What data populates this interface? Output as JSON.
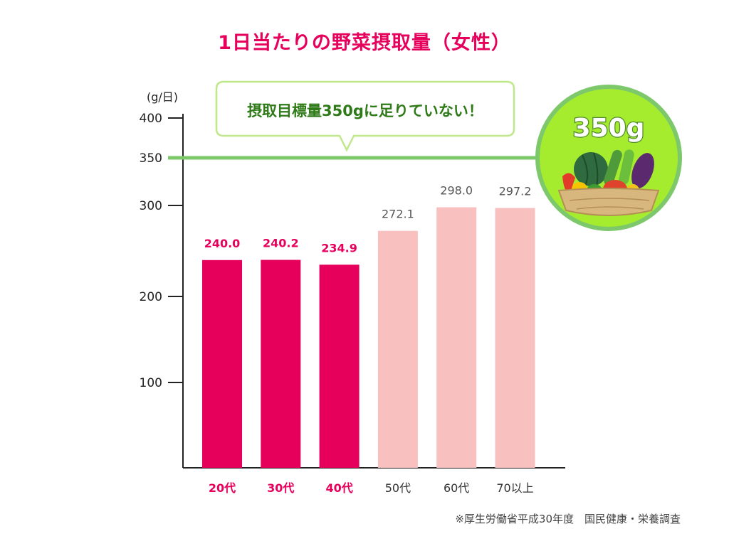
{
  "title": "1日当たりの野菜摂取量（女性）",
  "source_note": "※厚生労働省平成30年度　国民健康・栄養調査",
  "callout": "摂取目標量350gに足りていない！",
  "target_badge": "350g",
  "colors": {
    "highlight": "#e6005c",
    "muted": "#f9c0c0",
    "target_line": "#7cc86a",
    "badge_fill": "#a6ec2e",
    "badge_ring": "#7cc86a",
    "callout_text": "#2f7a18"
  },
  "chart_data": {
    "type": "bar",
    "title": "1日当たりの野菜摂取量（女性）",
    "ylabel": "(g/日)",
    "xlabel": "",
    "ylim": [
      0,
      400
    ],
    "yticks": [
      100,
      200,
      300,
      350,
      400
    ],
    "y_tick_labels": [
      "100",
      "200",
      "300",
      "350",
      "400"
    ],
    "grid": false,
    "categories": [
      "20代",
      "30代",
      "40代",
      "50代",
      "60代",
      "70以上"
    ],
    "values": [
      240.0,
      240.2,
      234.9,
      272.1,
      298.0,
      297.2
    ],
    "value_labels": [
      "240.0",
      "240.2",
      "234.9",
      "272.1",
      "298.0",
      "297.2"
    ],
    "highlighted": [
      true,
      true,
      true,
      false,
      false,
      false
    ],
    "target_line": 350
  }
}
